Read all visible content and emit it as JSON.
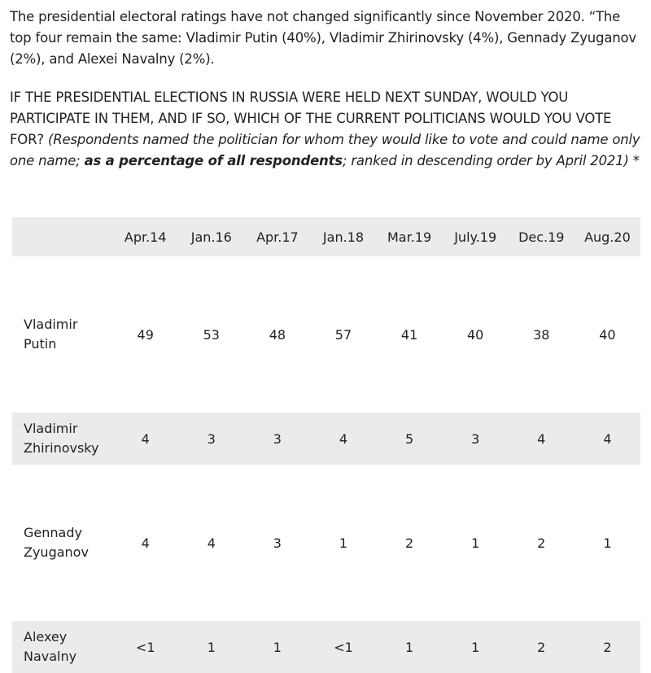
{
  "intro_text": "The presidential electoral ratings have not changed significantly since November 2020. “The top four remain the same: Vladimir Putin (40%), Vladimir Zhirinovsky (4%), Gennady Zyuganov (2%), and Alexei Navalny (2%).",
  "question": {
    "caps": "IF THE PRESIDENTIAL ELECTIONS IN RUSSIA WERE HELD NEXT SUNDAY, WOULD YOU PARTICIPATE IN THEM, AND IF SO, WHICH OF THE CURRENT POLITICIANS WOULD YOU VOTE FOR?",
    "note_start": "(Respondents named the politician for whom they would like to vote and could name only one name;",
    "note_bold": "as a percentage of all respondents",
    "note_end": "; ranked in descending order by April 2021) *"
  },
  "table": {
    "columns": [
      "Apr.14",
      "Jan.16",
      "Apr.17",
      "Jan.18",
      "Mar.19",
      "July.19",
      "Dec.19",
      "Aug.20"
    ],
    "rows": [
      {
        "first": "Vladimir",
        "last": "Putin",
        "values": [
          "49",
          "53",
          "48",
          "57",
          "41",
          "40",
          "38",
          "40"
        ]
      },
      {
        "first": "Vladimir",
        "last": "Zhirinovsky",
        "values": [
          "4",
          "3",
          "3",
          "4",
          "5",
          "3",
          "4",
          "4"
        ]
      },
      {
        "first": "Gennady",
        "last": "Zyuganov",
        "values": [
          "4",
          "4",
          "3",
          "1",
          "2",
          "1",
          "2",
          "1"
        ]
      },
      {
        "first": "Alexey",
        "last": "Navalny",
        "values": [
          "<1",
          "1",
          "1",
          "<1",
          "1",
          "1",
          "2",
          "2"
        ]
      }
    ]
  }
}
